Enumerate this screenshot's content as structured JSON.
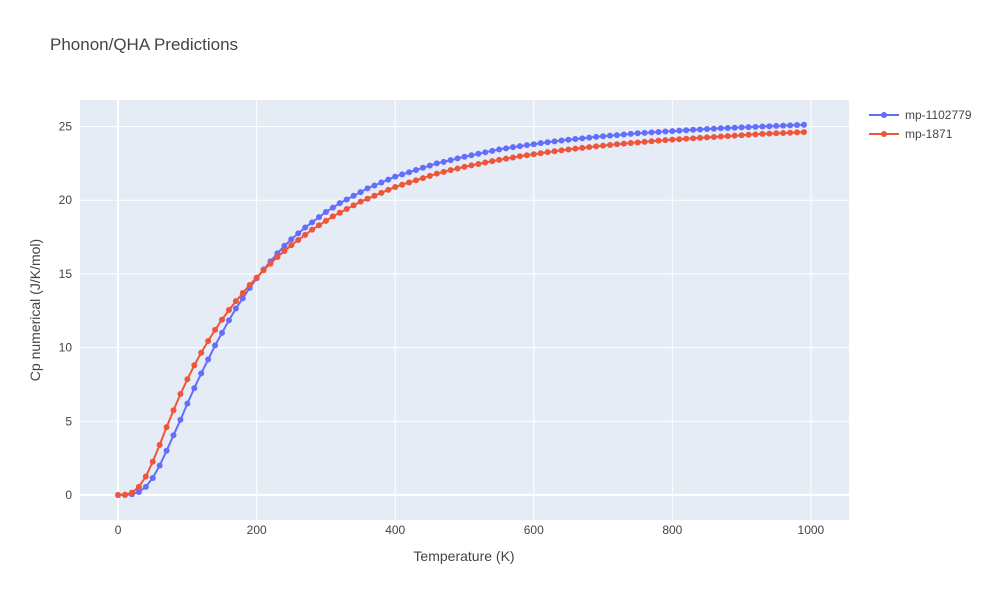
{
  "chart_data": {
    "type": "line",
    "title": "Phonon/QHA Predictions",
    "xlabel": "Temperature (K)",
    "ylabel": "Cp numerical (J/K/mol)",
    "xlim": [
      -55,
      1055
    ],
    "ylim": [
      -1.7,
      26.8
    ],
    "xticks": [
      0,
      200,
      400,
      600,
      800,
      1000
    ],
    "yticks": [
      0,
      5,
      10,
      15,
      20,
      25
    ],
    "grid": true,
    "legend_position": "top-right",
    "series": [
      {
        "name": "mp-1102779",
        "color": "#636efa",
        "x": [
          0,
          10,
          20,
          30,
          40,
          50,
          60,
          70,
          80,
          90,
          100,
          110,
          120,
          130,
          140,
          150,
          160,
          170,
          180,
          190,
          200,
          210,
          220,
          230,
          240,
          250,
          260,
          270,
          280,
          290,
          300,
          310,
          320,
          330,
          340,
          350,
          360,
          370,
          380,
          390,
          400,
          410,
          420,
          430,
          440,
          450,
          460,
          470,
          480,
          490,
          500,
          510,
          520,
          530,
          540,
          550,
          560,
          570,
          580,
          590,
          600,
          610,
          620,
          630,
          640,
          650,
          660,
          670,
          680,
          690,
          700,
          710,
          720,
          730,
          740,
          750,
          760,
          770,
          780,
          790,
          800,
          810,
          820,
          830,
          840,
          850,
          860,
          870,
          880,
          890,
          900,
          910,
          920,
          930,
          940,
          950,
          960,
          970,
          980,
          990
        ],
        "y": [
          0,
          0,
          0.05,
          0.2,
          0.55,
          1.15,
          2.0,
          3.0,
          4.05,
          5.1,
          6.2,
          7.25,
          8.25,
          9.2,
          10.15,
          11.0,
          11.85,
          12.65,
          13.35,
          14.05,
          14.7,
          15.3,
          15.85,
          16.4,
          16.9,
          17.35,
          17.75,
          18.15,
          18.5,
          18.85,
          19.2,
          19.5,
          19.8,
          20.05,
          20.3,
          20.55,
          20.8,
          21.0,
          21.2,
          21.4,
          21.6,
          21.75,
          21.9,
          22.05,
          22.2,
          22.35,
          22.5,
          22.6,
          22.72,
          22.84,
          22.95,
          23.05,
          23.15,
          23.25,
          23.35,
          23.44,
          23.52,
          23.6,
          23.67,
          23.74,
          23.8,
          23.87,
          23.93,
          23.99,
          24.05,
          24.1,
          24.15,
          24.2,
          24.25,
          24.3,
          24.34,
          24.38,
          24.42,
          24.46,
          24.5,
          24.54,
          24.57,
          24.6,
          24.63,
          24.66,
          24.69,
          24.72,
          24.75,
          24.78,
          24.8,
          24.83,
          24.85,
          24.88,
          24.9,
          24.92,
          24.94,
          24.96,
          24.98,
          25.0,
          25.02,
          25.04,
          25.06,
          25.08,
          25.1,
          25.12
        ]
      },
      {
        "name": "mp-1871",
        "color": "#ef553b",
        "x": [
          0,
          10,
          20,
          30,
          40,
          50,
          60,
          70,
          80,
          90,
          100,
          110,
          120,
          130,
          140,
          150,
          160,
          170,
          180,
          190,
          200,
          210,
          220,
          230,
          240,
          250,
          260,
          270,
          280,
          290,
          300,
          310,
          320,
          330,
          340,
          350,
          360,
          370,
          380,
          390,
          400,
          410,
          420,
          430,
          440,
          450,
          460,
          470,
          480,
          490,
          500,
          510,
          520,
          530,
          540,
          550,
          560,
          570,
          580,
          590,
          600,
          610,
          620,
          630,
          640,
          650,
          660,
          670,
          680,
          690,
          700,
          710,
          720,
          730,
          740,
          750,
          760,
          770,
          780,
          790,
          800,
          810,
          820,
          830,
          840,
          850,
          860,
          870,
          880,
          890,
          900,
          910,
          920,
          930,
          940,
          950,
          960,
          970,
          980,
          990
        ],
        "y": [
          0,
          0.02,
          0.15,
          0.55,
          1.25,
          2.25,
          3.4,
          4.6,
          5.75,
          6.85,
          7.85,
          8.8,
          9.65,
          10.45,
          11.2,
          11.9,
          12.55,
          13.15,
          13.7,
          14.25,
          14.75,
          15.25,
          15.7,
          16.15,
          16.55,
          16.95,
          17.3,
          17.65,
          18.0,
          18.3,
          18.6,
          18.9,
          19.15,
          19.4,
          19.65,
          19.9,
          20.1,
          20.3,
          20.5,
          20.7,
          20.9,
          21.05,
          21.2,
          21.35,
          21.5,
          21.65,
          21.8,
          21.92,
          22.04,
          22.15,
          22.26,
          22.36,
          22.46,
          22.56,
          22.65,
          22.74,
          22.82,
          22.9,
          22.98,
          23.05,
          23.12,
          23.19,
          23.26,
          23.32,
          23.38,
          23.44,
          23.5,
          23.55,
          23.6,
          23.65,
          23.7,
          23.75,
          23.8,
          23.84,
          23.88,
          23.92,
          23.96,
          24.0,
          24.04,
          24.08,
          24.11,
          24.14,
          24.17,
          24.2,
          24.23,
          24.26,
          24.29,
          24.32,
          24.35,
          24.38,
          24.41,
          24.44,
          24.47,
          24.5,
          24.52,
          24.54,
          24.56,
          24.58,
          24.6,
          24.62
        ]
      }
    ]
  }
}
